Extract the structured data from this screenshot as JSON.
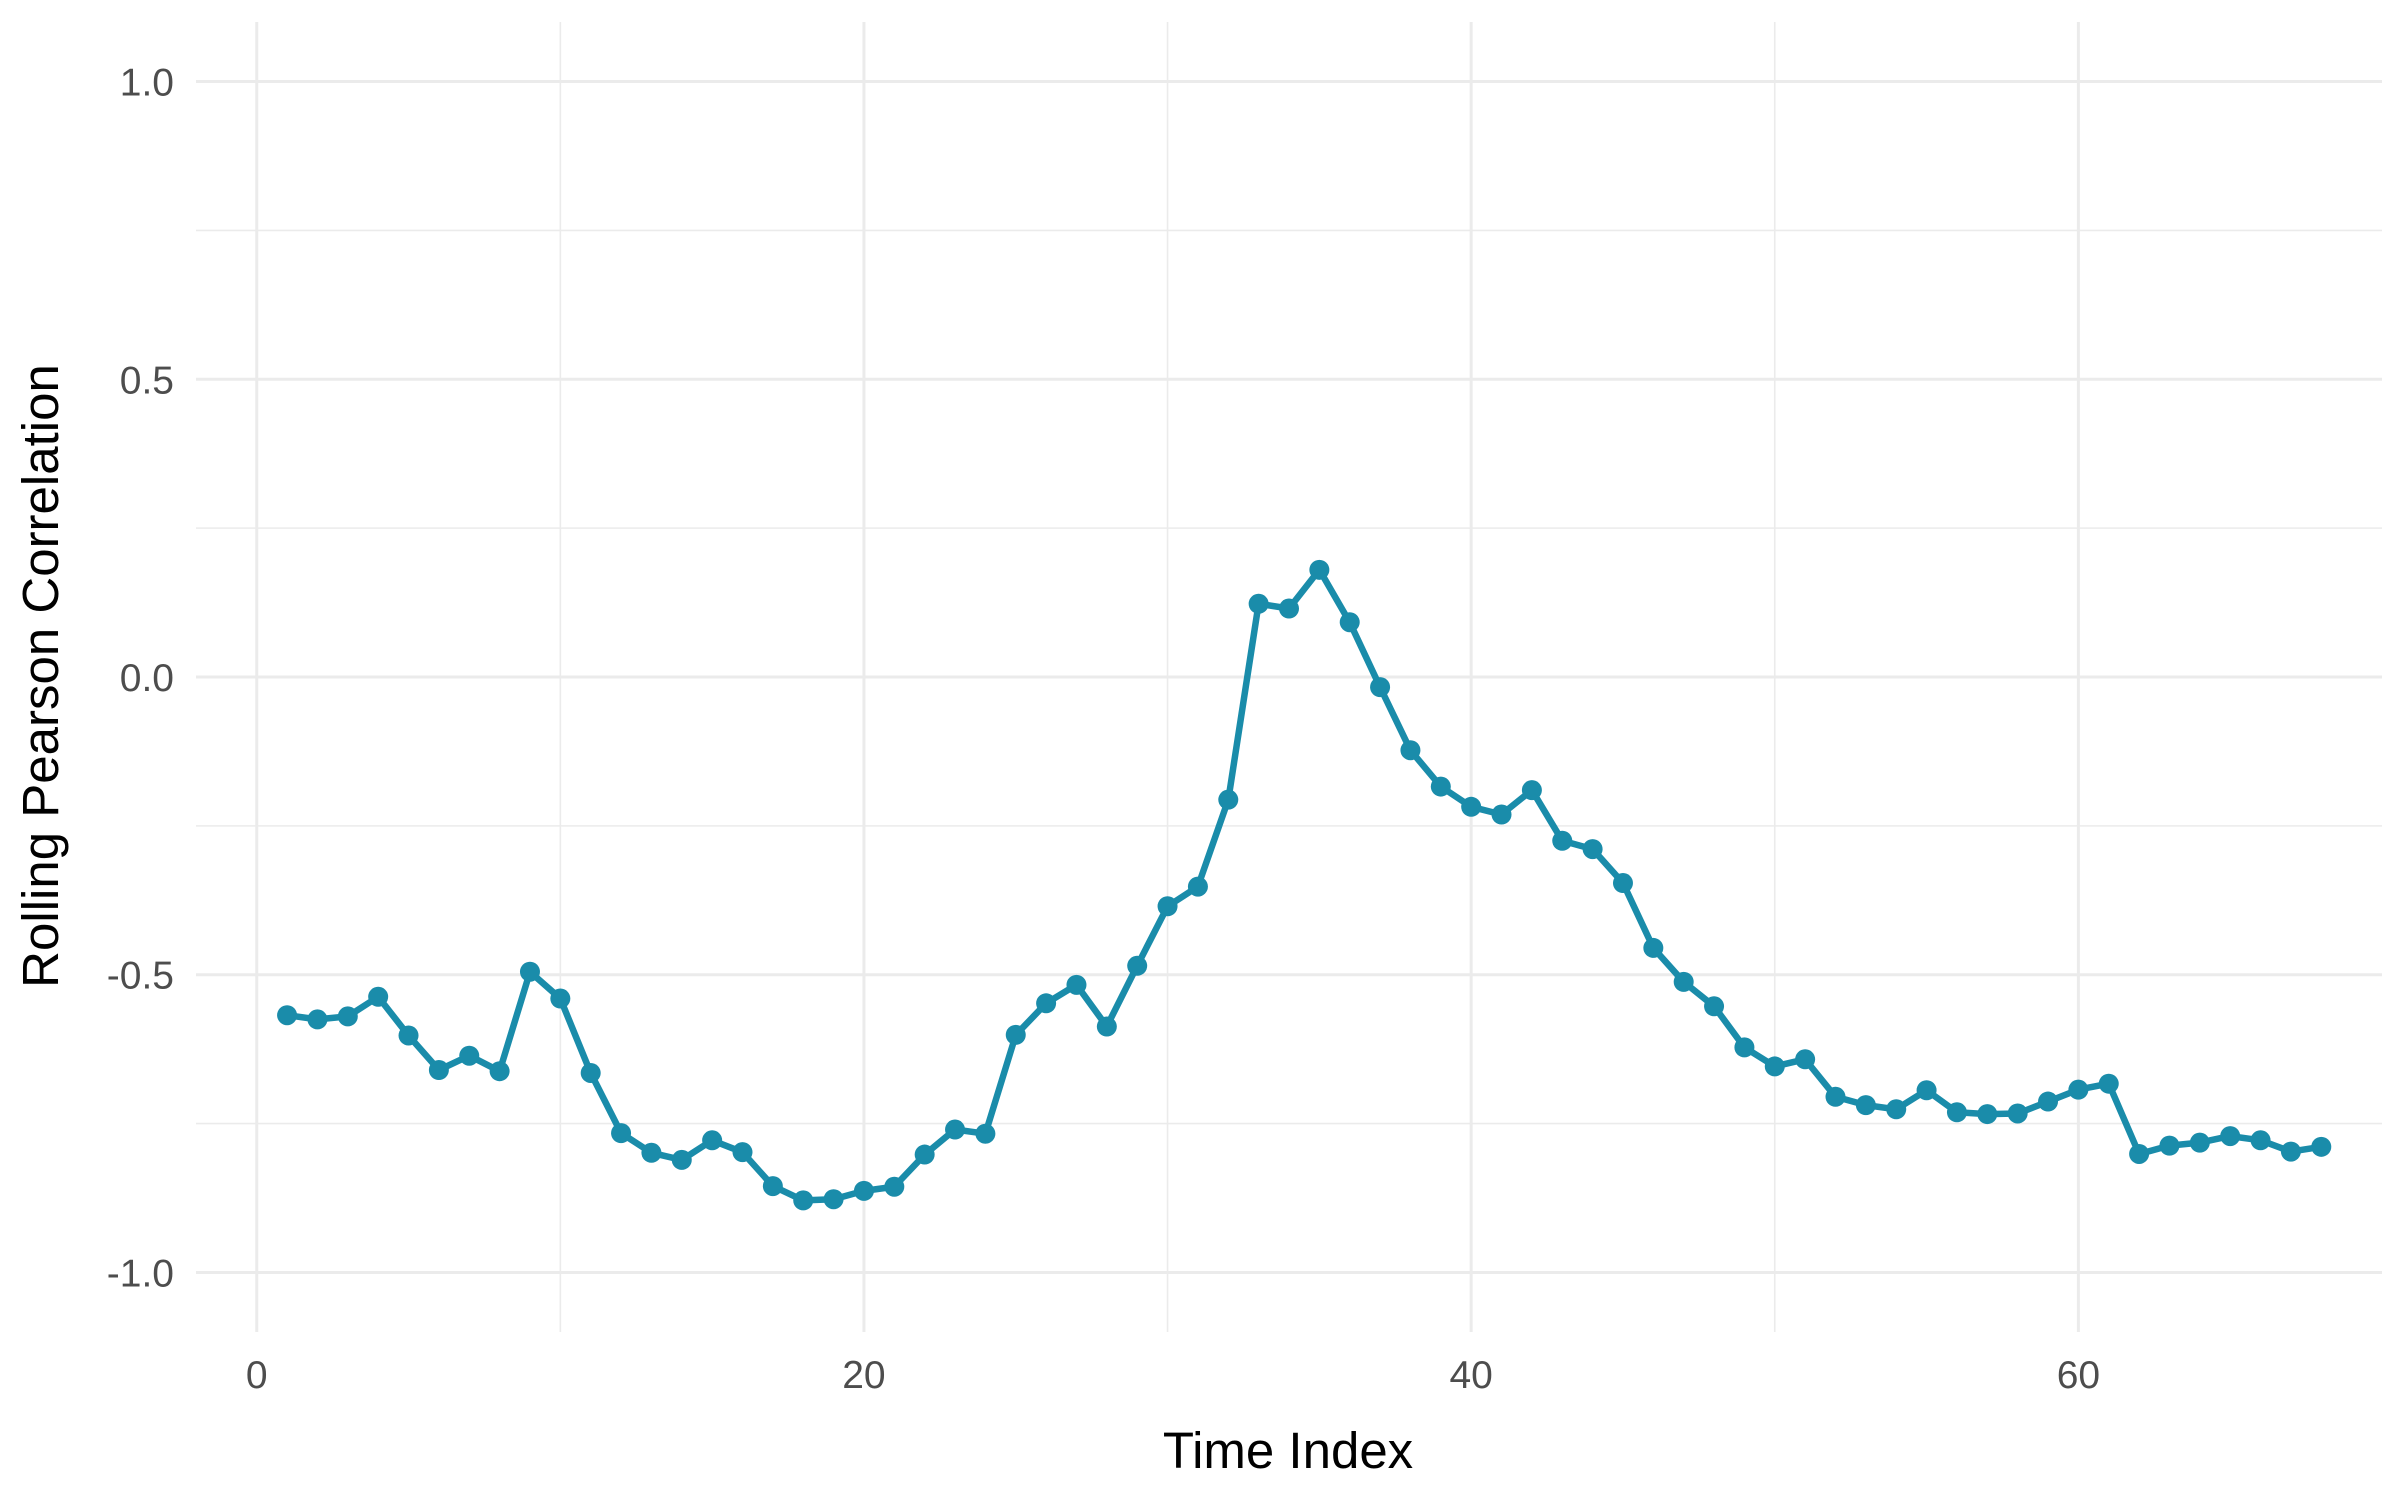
{
  "chart_data": {
    "type": "line",
    "title": "",
    "xlabel": "Time Index",
    "ylabel": "Rolling Pearson Correlation",
    "xlim": [
      -2,
      70
    ],
    "ylim": [
      -1.1,
      1.1
    ],
    "x_ticks": [
      0,
      20,
      40,
      60
    ],
    "x_tick_labels": [
      "0",
      "20",
      "40",
      "60"
    ],
    "y_ticks": [
      -1.0,
      -0.5,
      0.0,
      0.5,
      1.0
    ],
    "y_tick_labels": [
      "-1.0",
      "-0.5",
      "0.0",
      "0.5",
      "1.0"
    ],
    "grid": true,
    "color": "#1a8caa",
    "x": [
      1,
      2,
      3,
      4,
      5,
      6,
      7,
      8,
      9,
      10,
      11,
      12,
      13,
      14,
      15,
      16,
      17,
      18,
      19,
      20,
      21,
      22,
      23,
      24,
      25,
      26,
      27,
      28,
      29,
      30,
      31,
      32,
      33,
      34,
      35,
      36,
      37,
      38,
      39,
      40,
      41,
      42,
      43,
      44,
      45,
      46,
      47,
      48,
      49,
      50,
      51,
      52,
      53,
      54,
      55,
      56,
      57,
      58,
      59,
      60,
      61,
      62,
      63,
      64,
      65,
      66,
      67,
      68
    ],
    "y": [
      -0.568,
      -0.575,
      -0.57,
      -0.537,
      -0.602,
      -0.66,
      -0.636,
      -0.662,
      -0.495,
      -0.54,
      -0.665,
      -0.766,
      -0.799,
      -0.811,
      -0.778,
      -0.798,
      -0.855,
      -0.879,
      -0.877,
      -0.863,
      -0.856,
      -0.802,
      -0.76,
      -0.767,
      -0.601,
      -0.548,
      -0.517,
      -0.587,
      -0.485,
      -0.385,
      -0.352,
      -0.206,
      0.123,
      0.115,
      0.18,
      0.092,
      -0.017,
      -0.123,
      -0.184,
      -0.218,
      -0.231,
      -0.19,
      -0.275,
      -0.289,
      -0.346,
      -0.455,
      -0.512,
      -0.553,
      -0.622,
      -0.654,
      -0.642,
      -0.705,
      -0.719,
      -0.726,
      -0.694,
      -0.731,
      -0.734,
      -0.733,
      -0.713,
      -0.693,
      -0.683,
      -0.801,
      -0.787,
      -0.782,
      -0.771,
      -0.778,
      -0.797,
      -0.789
    ]
  }
}
